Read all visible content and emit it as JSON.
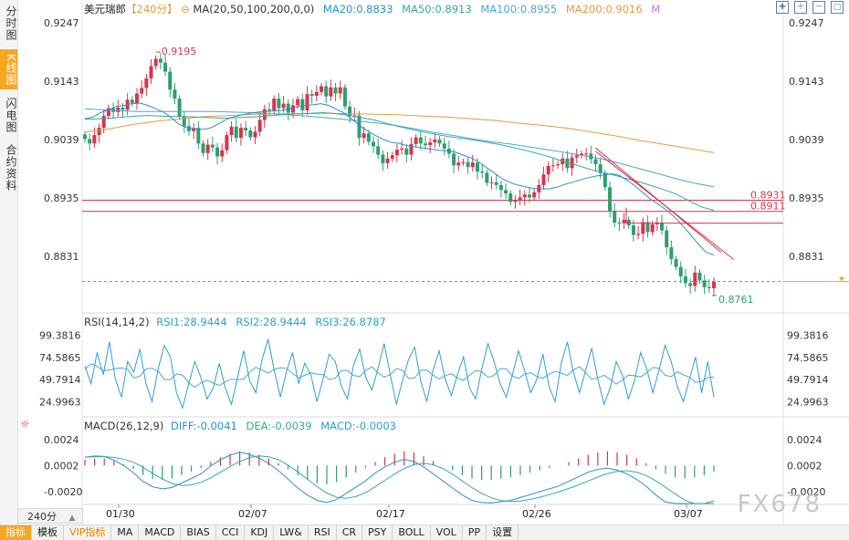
{
  "side_tabs": [
    {
      "label": "分时图",
      "active": false
    },
    {
      "label": "K线图",
      "active": true
    },
    {
      "label": "闪电图",
      "active": false
    },
    {
      "label": "合约资料",
      "active": false
    }
  ],
  "header": {
    "symbol": "美元瑞郎",
    "period_tag": "【240分】",
    "ma_label": "MA(20,50,100,200,0,0)",
    "ma20": "MA20:0.8833",
    "ma50": "MA50:0.8913",
    "ma100": "MA100:0.8955",
    "ma200": "MA200:0.9016",
    "ma_m": "M"
  },
  "colors": {
    "up": "#d9344a",
    "down": "#2f9e6e",
    "ma20": "#2b8fd0",
    "ma50": "#2fae9a",
    "ma100": "#4aa6d8",
    "ma200": "#e69a3e",
    "rsi": "#2b9fd6",
    "diff": "#2b8fd0",
    "dea": "#2fae9a",
    "hline": "#d9344a"
  },
  "main_axis": {
    "ticks": [
      "0.9247",
      "0.9143",
      "0.9039",
      "0.8935",
      "0.8831"
    ]
  },
  "annotations": {
    "high_label": "0.9195",
    "low_label": "0.8761",
    "hline1": "0.8931",
    "hline2": "0.8911"
  },
  "rsi_panel": {
    "title": "RSI(14,14,2)",
    "rsi1": "RSI1:28.9444",
    "rsi2": "RSI2:28.9444",
    "rsi3": "RSI3:26.8787",
    "ticks": [
      "99.3816",
      "74.5865",
      "49.7914",
      "24.9963"
    ]
  },
  "macd_panel": {
    "title": "MACD(26,12,9)",
    "diff": "DIFF:-0.0041",
    "dea": "DEA:-0.0039",
    "macd": "MACD:-0.0003",
    "ticks": [
      "0.0024",
      "0.0002",
      "-0.0020"
    ]
  },
  "x_axis": {
    "dates": [
      "01/30",
      "02/07",
      "02/17",
      "02/26",
      "03/07"
    ]
  },
  "period_select": "240分",
  "bottom_tabs": [
    "指标",
    "模板",
    "VIP指标",
    "MA",
    "MACD",
    "BIAS",
    "CCI",
    "KDJ",
    "LW&",
    "RSI",
    "CR",
    "PSY",
    "BOLL",
    "VOL",
    "PP",
    "设置"
  ],
  "watermark": "FX678",
  "chart_data": {
    "type": "candlestick",
    "title": "美元瑞郎 240分",
    "ylim": [
      0.8735,
      0.9265
    ],
    "closes": [
      0.904,
      0.9032,
      0.9047,
      0.906,
      0.9081,
      0.9095,
      0.9088,
      0.9096,
      0.9092,
      0.911,
      0.9104,
      0.9121,
      0.9131,
      0.9148,
      0.917,
      0.9183,
      0.9176,
      0.916,
      0.9128,
      0.9112,
      0.908,
      0.9063,
      0.9054,
      0.906,
      0.9032,
      0.9015,
      0.903,
      0.9025,
      0.9009,
      0.902,
      0.9047,
      0.9062,
      0.9042,
      0.906,
      0.9055,
      0.9043,
      0.9053,
      0.9074,
      0.9093,
      0.9091,
      0.9112,
      0.9095,
      0.9103,
      0.9087,
      0.91,
      0.9111,
      0.9091,
      0.912,
      0.9117,
      0.9124,
      0.9134,
      0.9116,
      0.9132,
      0.9121,
      0.9132,
      0.9098,
      0.9081,
      0.9082,
      0.9042,
      0.905,
      0.9035,
      0.9027,
      0.9012,
      0.8997,
      0.9005,
      0.9011,
      0.9021,
      0.9023,
      0.9012,
      0.9031,
      0.9043,
      0.9032,
      0.9029,
      0.9034,
      0.9039,
      0.9032,
      0.9023,
      0.9014,
      0.8993,
      0.8998,
      0.8999,
      0.899,
      0.8998,
      0.8982,
      0.898,
      0.8962,
      0.8963,
      0.8958,
      0.8949,
      0.8943,
      0.8928,
      0.893,
      0.8936,
      0.8941,
      0.8936,
      0.8945,
      0.8958,
      0.8977,
      0.8992,
      0.8993,
      0.8995,
      0.9005,
      0.8988,
      0.9007,
      0.9011,
      0.9014,
      0.9014,
      0.9004,
      0.8995,
      0.8979,
      0.8954,
      0.8912,
      0.8891,
      0.889,
      0.8896,
      0.8886,
      0.8869,
      0.8871,
      0.8892,
      0.8874,
      0.8888,
      0.8891,
      0.8877,
      0.8847,
      0.8826,
      0.8812,
      0.8795,
      0.8783,
      0.8778,
      0.8802,
      0.8788,
      0.8776,
      0.8774,
      0.8786
    ],
    "ma20": [
      0.9076,
      0.9079,
      0.9087,
      0.9092,
      0.9098,
      0.91,
      0.9103,
      0.9104,
      0.91,
      0.9094,
      0.9088,
      0.9078,
      0.9066,
      0.906,
      0.9058,
      0.9057,
      0.906,
      0.9067,
      0.9075,
      0.908,
      0.9083,
      0.9086,
      0.9088,
      0.9089,
      0.909,
      0.9091,
      0.9094,
      0.9097,
      0.91,
      0.9101,
      0.9103,
      0.91,
      0.9093,
      0.9086,
      0.9075,
      0.9063,
      0.9054,
      0.9046,
      0.9039,
      0.9034,
      0.9032,
      0.9028,
      0.9026,
      0.9024,
      0.9022,
      0.902,
      0.9019,
      0.9017,
      0.9012,
      0.9007,
      0.9,
      0.899,
      0.898,
      0.897,
      0.8963,
      0.8958,
      0.8955,
      0.8952,
      0.8951,
      0.8951,
      0.8954,
      0.8959,
      0.8963,
      0.8967,
      0.8971,
      0.8974,
      0.8976,
      0.8978,
      0.8975,
      0.8966,
      0.8956,
      0.8944,
      0.8932,
      0.8923,
      0.8913,
      0.8901,
      0.8886,
      0.887,
      0.8853,
      0.8838,
      0.8833
    ],
    "ma50": [
      0.9075,
      0.9076,
      0.9077,
      0.9079,
      0.9081,
      0.9082,
      0.9081,
      0.908,
      0.908,
      0.9079,
      0.9078,
      0.9077,
      0.9078,
      0.9079,
      0.908,
      0.9082,
      0.9084,
      0.9085,
      0.9086,
      0.9087,
      0.9085,
      0.9082,
      0.9078,
      0.9074,
      0.9068,
      0.9062,
      0.9057,
      0.9052,
      0.9048,
      0.9044,
      0.9041,
      0.9038,
      0.9034,
      0.903,
      0.9025,
      0.902,
      0.9014,
      0.9008,
      0.9,
      0.8994,
      0.8987,
      0.8981,
      0.8976,
      0.897,
      0.8964,
      0.8957,
      0.895,
      0.8942,
      0.893,
      0.8919,
      0.8913
    ],
    "ma100": [
      0.9094,
      0.9092,
      0.909,
      0.9089,
      0.9089,
      0.9089,
      0.9089,
      0.9089,
      0.9088,
      0.9087,
      0.9085,
      0.9083,
      0.9081,
      0.9078,
      0.9075,
      0.9071,
      0.9068,
      0.9063,
      0.9057,
      0.9051,
      0.9046,
      0.904,
      0.9035,
      0.9031,
      0.9026,
      0.9021,
      0.9016,
      0.901,
      0.9004,
      0.8996,
      0.8987,
      0.8978,
      0.8969,
      0.8961,
      0.8955
    ],
    "ma200": [
      0.9052,
      0.9058,
      0.9066,
      0.9072,
      0.9076,
      0.908,
      0.9082,
      0.9084,
      0.9085,
      0.9085,
      0.9086,
      0.9085,
      0.9084,
      0.9083,
      0.9081,
      0.9079,
      0.9076,
      0.9073,
      0.9068,
      0.9064,
      0.9059,
      0.9052,
      0.9045,
      0.9037,
      0.903,
      0.9023,
      0.9016
    ],
    "rsi_series": [
      65,
      45,
      80,
      55,
      92,
      50,
      30,
      70,
      58,
      84,
      45,
      25,
      62,
      88,
      75,
      35,
      18,
      45,
      70,
      52,
      28,
      40,
      68,
      40,
      22,
      52,
      82,
      48,
      35,
      72,
      95,
      60,
      30,
      58,
      80,
      45,
      68,
      55,
      25,
      50,
      78,
      70,
      42,
      28,
      66,
      84,
      52,
      38,
      62,
      90,
      55,
      22,
      48,
      72,
      86,
      48,
      25,
      60,
      82,
      50,
      32,
      55,
      75,
      40,
      28,
      62,
      90,
      70,
      45,
      30,
      55,
      82,
      60,
      35,
      50,
      78,
      42,
      25,
      68,
      92,
      58,
      35,
      60,
      85,
      50,
      22,
      40,
      70,
      55,
      28,
      48,
      80,
      62,
      35,
      60,
      88,
      70,
      42,
      25,
      50,
      75,
      35,
      70,
      30
    ],
    "macd_hist": [
      0.0005,
      0.0006,
      0.0006,
      0.0004,
      0.0001,
      -0.0003,
      -0.0008,
      -0.0011,
      -0.0012,
      -0.0011,
      -0.0008,
      -0.0005,
      -0.0002,
      0.0003,
      0.0007,
      0.001,
      0.0012,
      0.0011,
      0.0009,
      0.0006,
      0.0002,
      -0.0003,
      -0.0008,
      -0.0012,
      -0.0015,
      -0.0016,
      -0.0014,
      -0.001,
      -0.0006,
      -0.0002,
      0.0003,
      0.0007,
      0.001,
      0.0012,
      0.0011,
      0.0008,
      0.0004,
      0.0,
      -0.0004,
      -0.0008,
      -0.0011,
      -0.0012,
      -0.0012,
      -0.0011,
      -0.001,
      -0.0008,
      -0.0006,
      -0.0004,
      -0.0002,
      0.0,
      0.0003,
      0.0006,
      0.0009,
      0.0011,
      0.0012,
      0.0011,
      0.0009,
      0.0006,
      0.0002,
      -0.0003,
      -0.0007,
      -0.001,
      -0.0011,
      -0.001,
      -0.0008,
      -0.0005
    ]
  }
}
